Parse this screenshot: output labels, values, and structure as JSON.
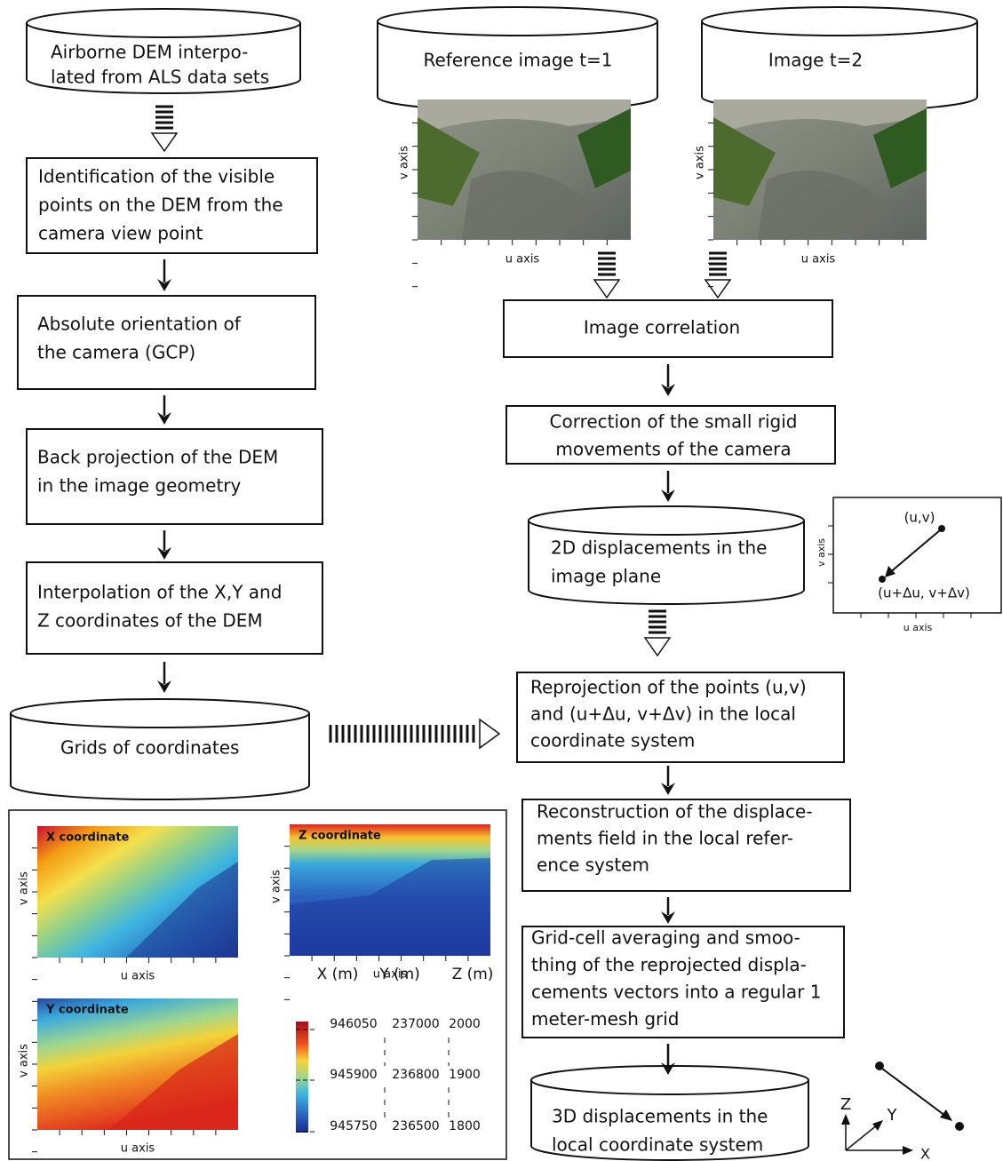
{
  "flow_nodes": [
    {
      "lines": [
        "Airborne DEM interpo-",
        "lated from ALS data sets"
      ]
    },
    {
      "lines": [
        "Identification of the visible",
        "points on the DEM from the",
        "camera view point"
      ]
    },
    {
      "lines": [
        "Absolute orientation of",
        "the camera (GCP)"
      ]
    },
    {
      "lines": [
        "Back projection of the DEM",
        "in the image geometry"
      ]
    },
    {
      "lines": [
        "Interpolation of the X,Y and",
        "Z coordinates of the DEM"
      ]
    },
    {
      "lines": [
        "Grids of coordinates"
      ]
    },
    {
      "lines": [
        "Reference image t=1"
      ]
    },
    {
      "lines": [
        "Image t=2"
      ]
    },
    {
      "lines": [
        "Image correlation"
      ]
    },
    {
      "lines": [
        "Correction of the small rigid",
        "movements of the camera"
      ]
    },
    {
      "lines": [
        "2D displacements in the",
        "image plane"
      ]
    },
    {
      "lines": [
        "Reprojection of the points (u,v)",
        "and (u+Δu, v+Δv)  in the local",
        "coordinate system"
      ]
    },
    {
      "lines": [
        "Reconstruction of the displace-",
        "ments field in the local refer-",
        "ence system"
      ]
    },
    {
      "lines": [
        "Grid-cell averaging and smoo-",
        "thing of the reprojected displa-",
        "cements vectors into a regular 1",
        "meter-mesh grid"
      ]
    },
    {
      "lines": [
        "3D displacements in the",
        "local coordinate system"
      ]
    }
  ],
  "images": [
    {
      "v_label": "v axis",
      "u_label": "u axis"
    },
    {
      "v_label": "v axis",
      "u_label": "u axis"
    }
  ],
  "displacement_inset": {
    "start": "(u,v)",
    "end": "(u+Δu, v+Δv)",
    "v_label": "v axis",
    "u_label": "u axis"
  },
  "axes_3d": {
    "z": "Z",
    "y": "Y",
    "x": "X"
  },
  "coordinate_maps": [
    {
      "title": "X coordinate",
      "v_label": "v axis",
      "u_label": "u axis"
    },
    {
      "title": "Z coordinate",
      "v_label": "v axis",
      "u_label": "u axis"
    },
    {
      "title": "Y coordinate",
      "v_label": "v axis",
      "u_label": "u axis"
    }
  ],
  "legend": {
    "headers": [
      "X (m)",
      "Y (m)",
      "Z (m)"
    ],
    "rows": [
      [
        946050,
        237000,
        2000
      ],
      [
        945900,
        236800,
        1900
      ],
      [
        945750,
        236500,
        1800
      ]
    ]
  }
}
